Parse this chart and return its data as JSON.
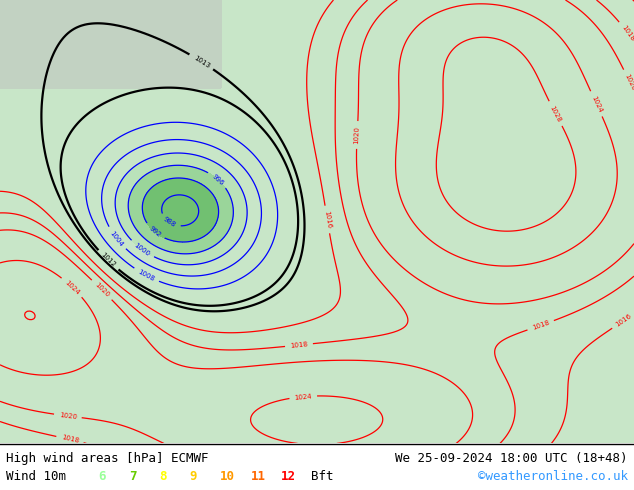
{
  "title_left": "High wind areas [hPa] ECMWF",
  "title_right": "We 25-09-2024 18:00 UTC (18+48)",
  "legend_label": "Wind 10m",
  "legend_values": [
    "6",
    "7",
    "8",
    "9",
    "10",
    "11",
    "12"
  ],
  "legend_suffix": "Bft",
  "legend_colors": [
    "#99ff99",
    "#66cc00",
    "#ffff00",
    "#ffcc00",
    "#ff9900",
    "#ff6600",
    "#ff0000"
  ],
  "copyright": "©weatheronline.co.uk",
  "map_bg": "#c8e6c8",
  "font_color": "#000000",
  "copyright_color": "#3399ff",
  "figsize": [
    6.34,
    4.9
  ],
  "dpi": 100
}
